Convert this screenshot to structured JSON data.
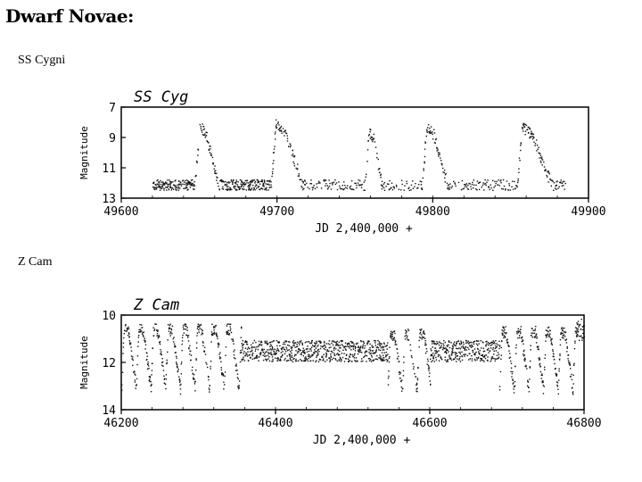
{
  "page": {
    "title": "Dwarf Novae:",
    "ss_label": "SS Cygni",
    "z_label": "Z Cam"
  },
  "chart_data": [
    {
      "type": "scatter",
      "title": "SS Cyg",
      "xlabel": "JD 2,400,000 +",
      "ylabel": "Magnitude",
      "xlim": [
        49600,
        49900
      ],
      "ylim": [
        13,
        7
      ],
      "y_inverted": true,
      "xticks": [
        49600,
        49700,
        49800,
        49900
      ],
      "yticks": [
        7,
        9,
        11,
        13
      ],
      "outbursts": [
        {
          "rise": 49650,
          "peak_mag": 8.2,
          "decline_end": 49662
        },
        {
          "rise": 49699,
          "peak_mag": 8.1,
          "decline_end": 49716
        },
        {
          "rise": 49759,
          "peak_mag": 8.6,
          "decline_end": 49767
        },
        {
          "rise": 49796,
          "peak_mag": 8.3,
          "decline_end": 49809
        },
        {
          "rise": 49857,
          "peak_mag": 8.3,
          "decline_end": 49876
        }
      ],
      "quiescent_mag": 12.1,
      "data_range": [
        49620,
        49885
      ]
    },
    {
      "type": "scatter",
      "title": "Z Cam",
      "xlabel": "JD 2,400,000 +",
      "ylabel": "Magnitude",
      "xlim": [
        46200,
        46800
      ],
      "ylim": [
        14,
        10
      ],
      "y_inverted": true,
      "xticks": [
        46200,
        46400,
        46600,
        46800
      ],
      "yticks": [
        10,
        12,
        14
      ],
      "segments": [
        {
          "kind": "outbursts",
          "start": 46200,
          "end": 46355,
          "bright": 10.6,
          "faint": 13.1
        },
        {
          "kind": "standstill",
          "start": 46355,
          "end": 46545,
          "mag": 11.5
        },
        {
          "kind": "outbursts",
          "start": 46545,
          "end": 46600,
          "bright": 10.8,
          "faint": 13.2
        },
        {
          "kind": "standstill",
          "start": 46600,
          "end": 46690,
          "mag": 11.5
        },
        {
          "kind": "outbursts",
          "start": 46690,
          "end": 46790,
          "bright": 10.7,
          "faint": 13.2
        },
        {
          "kind": "bright",
          "start": 46790,
          "end": 46800,
          "mag": 10.6
        }
      ]
    }
  ]
}
